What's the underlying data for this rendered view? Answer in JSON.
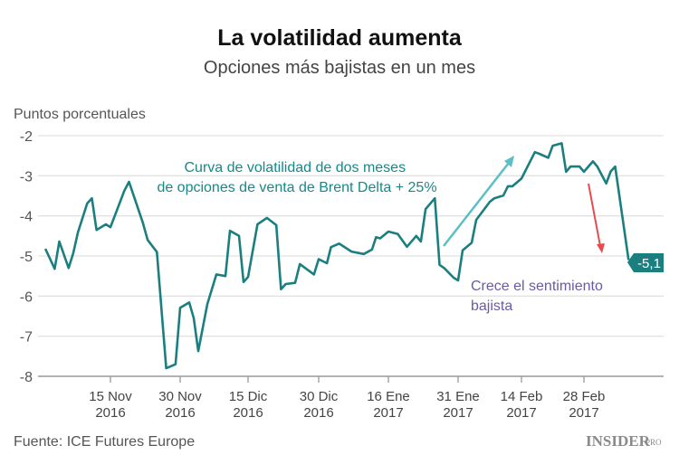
{
  "title": "La volatilidad aumenta",
  "subtitle": "Opciones más bajistas en un mes",
  "source": "Fuente: ICE Futures Europe",
  "logo": {
    "main": "INSIDER",
    "suffix": "PRO"
  },
  "colors": {
    "line": "#1b7f80",
    "grid": "#e2e2e2",
    "arrow_up": "#5bbfc4",
    "arrow_down": "#e84b4b",
    "annotation_teal": "#17898a",
    "annotation_purple": "#6c5aa4",
    "end_label_bg": "#1b7f80"
  },
  "chart_data": {
    "type": "line",
    "ylabel": "Puntos porcentuales",
    "ylim": [
      -8,
      -2
    ],
    "yticks": [
      "-2",
      "-3",
      "-4",
      "-5",
      "-6",
      "-7",
      "-8"
    ],
    "xticks": [
      {
        "date": "2016-11-15",
        "line1": "15 Nov",
        "line2": "2016"
      },
      {
        "date": "2016-11-30",
        "line1": "30 Nov",
        "line2": "2016"
      },
      {
        "date": "2016-12-15",
        "line1": "15 Dic",
        "line2": "2016"
      },
      {
        "date": "2016-12-30",
        "line1": "30 Dic",
        "line2": "2016"
      },
      {
        "date": "2017-01-16",
        "line1": "16 Ene",
        "line2": "2017"
      },
      {
        "date": "2017-01-31",
        "line1": "31 Ene",
        "line2": "2017"
      },
      {
        "date": "2017-02-14",
        "line1": "14 Feb",
        "line2": "2017"
      },
      {
        "date": "2017-02-28",
        "line1": "28 Feb",
        "line2": "2017"
      }
    ],
    "grid": true,
    "series": [
      {
        "x": [
          "2016-11-01",
          "2016-11-03",
          "2016-11-04",
          "2016-11-06",
          "2016-11-07",
          "2016-11-08",
          "2016-11-10",
          "2016-11-11",
          "2016-11-12",
          "2016-11-14",
          "2016-11-15",
          "2016-11-18",
          "2016-11-19",
          "2016-11-22",
          "2016-11-23",
          "2016-11-25",
          "2016-11-27",
          "2016-11-29",
          "2016-11-30",
          "2016-12-02",
          "2016-12-03",
          "2016-12-04",
          "2016-12-06",
          "2016-12-08",
          "2016-12-10",
          "2016-12-11",
          "2016-12-13",
          "2016-12-14",
          "2016-12-15",
          "2016-12-17",
          "2016-12-19",
          "2016-12-21",
          "2016-12-22",
          "2016-12-23",
          "2016-12-25",
          "2016-12-26",
          "2016-12-29",
          "2016-12-30",
          "2017-01-01",
          "2017-01-02",
          "2017-01-04",
          "2017-01-07",
          "2017-01-10",
          "2017-01-12",
          "2017-01-13",
          "2017-01-14",
          "2017-01-16",
          "2017-01-18",
          "2017-01-20",
          "2017-01-22",
          "2017-01-23",
          "2017-01-24",
          "2017-01-26",
          "2017-01-27",
          "2017-01-28",
          "2017-01-30",
          "2017-01-31",
          "2017-02-01",
          "2017-02-03",
          "2017-02-04",
          "2017-02-07",
          "2017-02-08",
          "2017-02-10",
          "2017-02-11",
          "2017-02-12",
          "2017-02-14",
          "2017-02-17",
          "2017-02-18",
          "2017-02-20",
          "2017-02-21",
          "2017-02-23",
          "2017-02-24",
          "2017-02-25",
          "2017-02-27",
          "2017-02-28",
          "2017-03-02",
          "2017-03-03",
          "2017-03-05",
          "2017-03-06",
          "2017-03-07",
          "2017-03-10"
        ],
        "y": [
          -4.82,
          -5.32,
          -4.64,
          -5.3,
          -4.93,
          -4.41,
          -3.69,
          -3.56,
          -4.35,
          -4.21,
          -4.28,
          -3.37,
          -3.15,
          -4.18,
          -4.6,
          -4.9,
          -7.8,
          -7.7,
          -6.29,
          -6.16,
          -6.55,
          -7.37,
          -6.2,
          -5.46,
          -5.5,
          -4.37,
          -4.5,
          -5.65,
          -5.52,
          -4.21,
          -4.05,
          -4.23,
          -5.83,
          -5.7,
          -5.67,
          -5.2,
          -5.46,
          -5.08,
          -5.18,
          -4.78,
          -4.69,
          -4.89,
          -4.95,
          -4.84,
          -4.53,
          -4.56,
          -4.39,
          -4.45,
          -4.77,
          -4.5,
          -4.64,
          -3.83,
          -3.56,
          -5.22,
          -5.3,
          -5.54,
          -5.61,
          -4.86,
          -4.67,
          -4.1,
          -3.65,
          -3.56,
          -3.49,
          -3.26,
          -3.26,
          -3.07,
          -2.41,
          -2.45,
          -2.55,
          -2.25,
          -2.19,
          -2.9,
          -2.77,
          -2.77,
          -2.9,
          -2.64,
          -2.77,
          -3.19,
          -2.89,
          -2.77,
          -5.1
        ]
      }
    ],
    "end_label": "-5,1",
    "annotations": [
      {
        "text_lines": [
          "Curva de volatilidad de dos meses",
          "de opciones de venta de Brent Delta + 25%"
        ]
      },
      {
        "text_lines": [
          "Crece el sentimiento",
          "bajista"
        ]
      }
    ]
  }
}
